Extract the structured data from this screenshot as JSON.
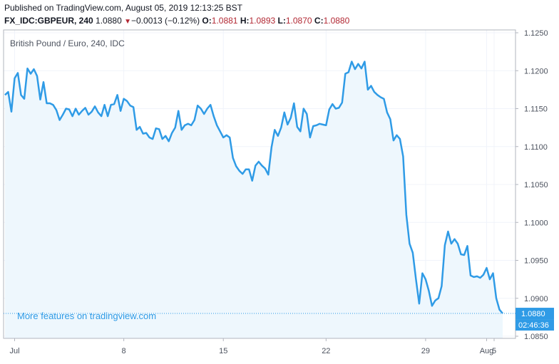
{
  "header": {
    "published": "Published on TradingView.com, August 05, 2019 12:13:25 BST",
    "symbol": "FX_IDC:GBPEUR, 240",
    "last": "1.0880",
    "change": "−0.0013 (−0.12%)",
    "o_label": "O:",
    "o_value": "1.0881",
    "h_label": "H:",
    "h_value": "1.0893",
    "l_label": "L:",
    "l_value": "1.0870",
    "c_label": "C:",
    "c_value": "1.0880"
  },
  "promo_text": "More features on tradingview.com",
  "last_price_badge": "1.0880",
  "countdown_badge": "02:46:36",
  "colors": {
    "line": "#2f9be6",
    "fill": "#eef7fd",
    "badge": "#2f9be6",
    "down": "#b22833"
  },
  "chart_data": {
    "type": "area",
    "title": "British Pound / Euro, 240, IDC",
    "xlabel": "",
    "ylabel": "",
    "ylim": [
      1.0845,
      1.1255
    ],
    "y_ticks": [
      "1.0850",
      "1.0900",
      "1.0950",
      "1.1000",
      "1.1050",
      "1.1100",
      "1.1150",
      "1.1200",
      "1.1250"
    ],
    "x_ticks": [
      "Jul",
      "8",
      "15",
      "22",
      "29",
      "Aug",
      "5"
    ],
    "grid": true,
    "legend": "none",
    "series": [
      {
        "values": [
          1.1168,
          1.1172,
          1.1146,
          1.119,
          1.1197,
          1.1168,
          1.1163,
          1.1203,
          1.1196,
          1.1202,
          1.1193,
          1.1162,
          1.1185,
          1.1157,
          1.1157,
          1.1155,
          1.1148,
          1.1135,
          1.1142,
          1.115,
          1.1149,
          1.114,
          1.115,
          1.1142,
          1.1147,
          1.1151,
          1.1142,
          1.1146,
          1.1153,
          1.1145,
          1.114,
          1.1155,
          1.114,
          1.1155,
          1.1156,
          1.1168,
          1.1147,
          1.1163,
          1.116,
          1.1154,
          1.1152,
          1.1122,
          1.1126,
          1.1117,
          1.1118,
          1.1112,
          1.111,
          1.1124,
          1.1123,
          1.111,
          1.1114,
          1.1107,
          1.1118,
          1.1125,
          1.1147,
          1.1122,
          1.1128,
          1.113,
          1.1128,
          1.1135,
          1.1154,
          1.115,
          1.1143,
          1.115,
          1.1155,
          1.114,
          1.1128,
          1.112,
          1.1112,
          1.1115,
          1.1112,
          1.1085,
          1.1074,
          1.1068,
          1.1064,
          1.107,
          1.107,
          1.1055,
          1.1075,
          1.108,
          1.1075,
          1.1071,
          1.1063,
          1.1099,
          1.1122,
          1.1114,
          1.1125,
          1.1145,
          1.1129,
          1.1138,
          1.1157,
          1.1126,
          1.112,
          1.115,
          1.1143,
          1.1112,
          1.1127,
          1.1128,
          1.113,
          1.1129,
          1.1128,
          1.1149,
          1.1156,
          1.115,
          1.1151,
          1.1158,
          1.1196,
          1.1198,
          1.1212,
          1.1202,
          1.1209,
          1.1203,
          1.1212,
          1.1175,
          1.118,
          1.1172,
          1.1168,
          1.1165,
          1.1163,
          1.1145,
          1.1136,
          1.1108,
          1.1115,
          1.111,
          1.1087,
          1.101,
          1.0972,
          1.096,
          1.0925,
          1.0893,
          1.0933,
          1.0925,
          1.091,
          1.089,
          1.0897,
          1.09,
          1.0916,
          1.097,
          1.0988,
          1.0972,
          1.0978,
          1.0972,
          1.0958,
          1.0957,
          1.0969,
          1.093,
          1.0928,
          1.0929,
          1.0927,
          1.0931,
          1.094,
          1.0925,
          1.0933,
          1.09,
          1.0885,
          1.088
        ]
      }
    ]
  }
}
